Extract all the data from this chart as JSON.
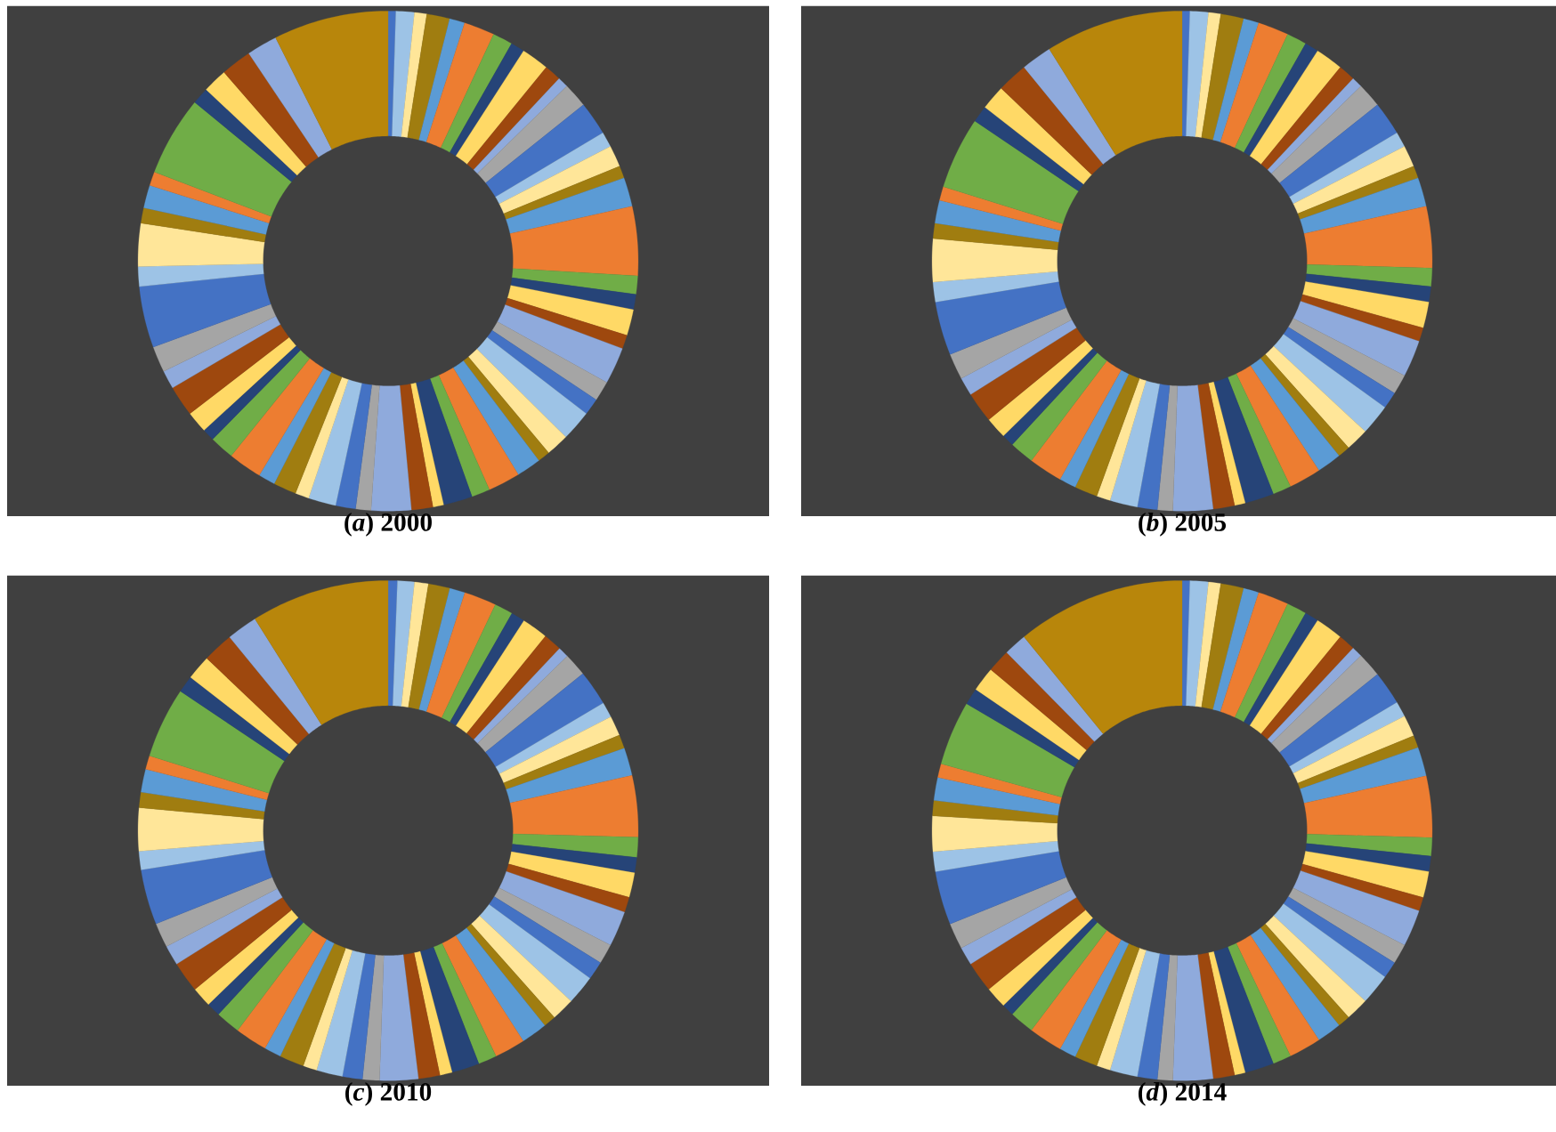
{
  "chart_data": [
    {
      "type": "donut",
      "title": "(*a*) 2000",
      "values": [
        0.5,
        1.2,
        0.8,
        1.5,
        1.0,
        2.0,
        1.3,
        0.9,
        1.8,
        1.1,
        0.7,
        1.6,
        2.2,
        1.0,
        1.4,
        0.8,
        1.9,
        4.5,
        1.2,
        1.0,
        1.7,
        0.9,
        2.4,
        1.3,
        1.1,
        2.0,
        1.5,
        0.8,
        1.6,
        2.1,
        1.2,
        1.9,
        0.7,
        1.4,
        2.6,
        1.0,
        1.3,
        1.8,
        0.9,
        1.5,
        1.1,
        2.2,
        1.6,
        0.8,
        1.4,
        2.0,
        1.2,
        1.7,
        4.0,
        1.3,
        2.8,
        1.0,
        1.5,
        0.9,
        5.2,
        1.1,
        1.6,
        2.0,
        2.0,
        7.5
      ],
      "colors": [
        "#4472c4",
        "#9dc3e6",
        "#ffe699",
        "#a07d10",
        "#5b9bd5",
        "#ed7d31",
        "#70ad47",
        "#264478",
        "#ffd966",
        "#9e480e",
        "#8faadc",
        "#a5a5a5",
        "#4472c4",
        "#9dc3e6",
        "#ffe699",
        "#a07d10",
        "#5b9bd5",
        "#ed7d31",
        "#70ad47",
        "#264478",
        "#ffd966",
        "#9e480e",
        "#8faadc",
        "#a5a5a5",
        "#4472c4",
        "#9dc3e6",
        "#ffe699",
        "#a07d10",
        "#5b9bd5",
        "#ed7d31",
        "#70ad47",
        "#264478",
        "#ffd966",
        "#9e480e",
        "#8faadc",
        "#a5a5a5",
        "#4472c4",
        "#9dc3e6",
        "#ffe699",
        "#a07d10",
        "#5b9bd5",
        "#ed7d31",
        "#70ad47",
        "#264478",
        "#ffd966",
        "#9e480e",
        "#8faadc",
        "#a5a5a5",
        "#4472c4",
        "#9dc3e6",
        "#ffe699",
        "#a07d10",
        "#5b9bd5",
        "#ed7d31",
        "#70ad47",
        "#264478",
        "#ffd966",
        "#9e480e",
        "#8faadc",
        "#b8860b"
      ]
    },
    {
      "type": "donut",
      "title": "(*b*) 2005",
      "values": [
        0.5,
        1.2,
        0.8,
        1.5,
        1.0,
        2.0,
        1.3,
        0.9,
        1.8,
        1.1,
        0.7,
        1.6,
        2.2,
        1.0,
        1.4,
        0.8,
        1.9,
        4.0,
        1.2,
        1.0,
        1.7,
        0.9,
        2.4,
        1.3,
        1.1,
        2.0,
        1.5,
        0.8,
        1.6,
        2.1,
        1.2,
        1.9,
        0.7,
        1.4,
        2.6,
        1.0,
        1.3,
        1.8,
        0.9,
        1.5,
        1.1,
        2.2,
        1.6,
        0.8,
        1.4,
        2.0,
        1.2,
        1.7,
        3.5,
        1.3,
        2.8,
        1.0,
        1.5,
        0.9,
        4.7,
        1.1,
        1.6,
        2.0,
        2.0,
        9.0
      ],
      "colors": [
        "#4472c4",
        "#9dc3e6",
        "#ffe699",
        "#a07d10",
        "#5b9bd5",
        "#ed7d31",
        "#70ad47",
        "#264478",
        "#ffd966",
        "#9e480e",
        "#8faadc",
        "#a5a5a5",
        "#4472c4",
        "#9dc3e6",
        "#ffe699",
        "#a07d10",
        "#5b9bd5",
        "#ed7d31",
        "#70ad47",
        "#264478",
        "#ffd966",
        "#9e480e",
        "#8faadc",
        "#a5a5a5",
        "#4472c4",
        "#9dc3e6",
        "#ffe699",
        "#a07d10",
        "#5b9bd5",
        "#ed7d31",
        "#70ad47",
        "#264478",
        "#ffd966",
        "#9e480e",
        "#8faadc",
        "#a5a5a5",
        "#4472c4",
        "#9dc3e6",
        "#ffe699",
        "#a07d10",
        "#5b9bd5",
        "#ed7d31",
        "#70ad47",
        "#264478",
        "#ffd966",
        "#9e480e",
        "#8faadc",
        "#a5a5a5",
        "#4472c4",
        "#9dc3e6",
        "#ffe699",
        "#a07d10",
        "#5b9bd5",
        "#ed7d31",
        "#70ad47",
        "#264478",
        "#ffd966",
        "#9e480e",
        "#8faadc",
        "#b8860b"
      ]
    },
    {
      "type": "donut",
      "title": "(*c*) 2010",
      "values": [
        0.6,
        1.1,
        0.9,
        1.4,
        1.0,
        2.1,
        1.2,
        0.9,
        1.7,
        1.2,
        0.7,
        1.5,
        2.3,
        1.0,
        1.3,
        0.9,
        1.8,
        4.0,
        1.3,
        1.0,
        1.6,
        1.0,
        2.3,
        1.3,
        1.2,
        1.9,
        1.5,
        0.8,
        1.7,
        2.0,
        1.2,
        1.8,
        0.8,
        1.4,
        2.5,
        1.1,
        1.3,
        1.7,
        0.9,
        1.6,
        1.1,
        2.1,
        1.6,
        0.9,
        1.3,
        2.0,
        1.3,
        1.6,
        3.6,
        1.2,
        2.8,
        1.0,
        1.5,
        0.9,
        4.6,
        1.1,
        1.6,
        2.0,
        2.0,
        9.0
      ],
      "colors": [
        "#4472c4",
        "#9dc3e6",
        "#ffe699",
        "#a07d10",
        "#5b9bd5",
        "#ed7d31",
        "#70ad47",
        "#264478",
        "#ffd966",
        "#9e480e",
        "#8faadc",
        "#a5a5a5",
        "#4472c4",
        "#9dc3e6",
        "#ffe699",
        "#a07d10",
        "#5b9bd5",
        "#ed7d31",
        "#70ad47",
        "#264478",
        "#ffd966",
        "#9e480e",
        "#8faadc",
        "#a5a5a5",
        "#4472c4",
        "#9dc3e6",
        "#ffe699",
        "#a07d10",
        "#5b9bd5",
        "#ed7d31",
        "#70ad47",
        "#264478",
        "#ffd966",
        "#9e480e",
        "#8faadc",
        "#a5a5a5",
        "#4472c4",
        "#9dc3e6",
        "#ffe699",
        "#a07d10",
        "#5b9bd5",
        "#ed7d31",
        "#70ad47",
        "#264478",
        "#ffd966",
        "#9e480e",
        "#8faadc",
        "#a5a5a5",
        "#4472c4",
        "#9dc3e6",
        "#ffe699",
        "#a07d10",
        "#5b9bd5",
        "#ed7d31",
        "#70ad47",
        "#264478",
        "#ffd966",
        "#9e480e",
        "#8faadc",
        "#b8860b"
      ]
    },
    {
      "type": "donut",
      "title": "(*d*) 2014",
      "values": [
        0.5,
        1.2,
        0.8,
        1.5,
        1.0,
        2.0,
        1.3,
        0.9,
        1.8,
        1.1,
        0.7,
        1.6,
        2.2,
        1.0,
        1.4,
        0.8,
        1.9,
        4.0,
        1.2,
        1.0,
        1.7,
        0.9,
        2.4,
        1.3,
        1.1,
        2.0,
        1.5,
        0.8,
        1.6,
        2.1,
        1.2,
        1.9,
        0.7,
        1.4,
        2.6,
        1.0,
        1.3,
        1.8,
        0.9,
        1.5,
        1.1,
        2.2,
        1.6,
        0.8,
        1.4,
        2.0,
        1.2,
        1.7,
        3.5,
        1.3,
        2.3,
        1.0,
        1.5,
        0.9,
        4.2,
        1.1,
        1.6,
        1.5,
        1.5,
        11.0
      ],
      "colors": [
        "#4472c4",
        "#9dc3e6",
        "#ffe699",
        "#a07d10",
        "#5b9bd5",
        "#ed7d31",
        "#70ad47",
        "#264478",
        "#ffd966",
        "#9e480e",
        "#8faadc",
        "#a5a5a5",
        "#4472c4",
        "#9dc3e6",
        "#ffe699",
        "#a07d10",
        "#5b9bd5",
        "#ed7d31",
        "#70ad47",
        "#264478",
        "#ffd966",
        "#9e480e",
        "#8faadc",
        "#a5a5a5",
        "#4472c4",
        "#9dc3e6",
        "#ffe699",
        "#a07d10",
        "#5b9bd5",
        "#ed7d31",
        "#70ad47",
        "#264478",
        "#ffd966",
        "#9e480e",
        "#8faadc",
        "#a5a5a5",
        "#4472c4",
        "#9dc3e6",
        "#ffe699",
        "#a07d10",
        "#5b9bd5",
        "#ed7d31",
        "#70ad47",
        "#264478",
        "#ffd966",
        "#9e480e",
        "#8faadc",
        "#a5a5a5",
        "#4472c4",
        "#9dc3e6",
        "#ffe699",
        "#a07d10",
        "#5b9bd5",
        "#ed7d31",
        "#70ad47",
        "#264478",
        "#ffd966",
        "#9e480e",
        "#8faadc",
        "#b8860b"
      ]
    }
  ]
}
